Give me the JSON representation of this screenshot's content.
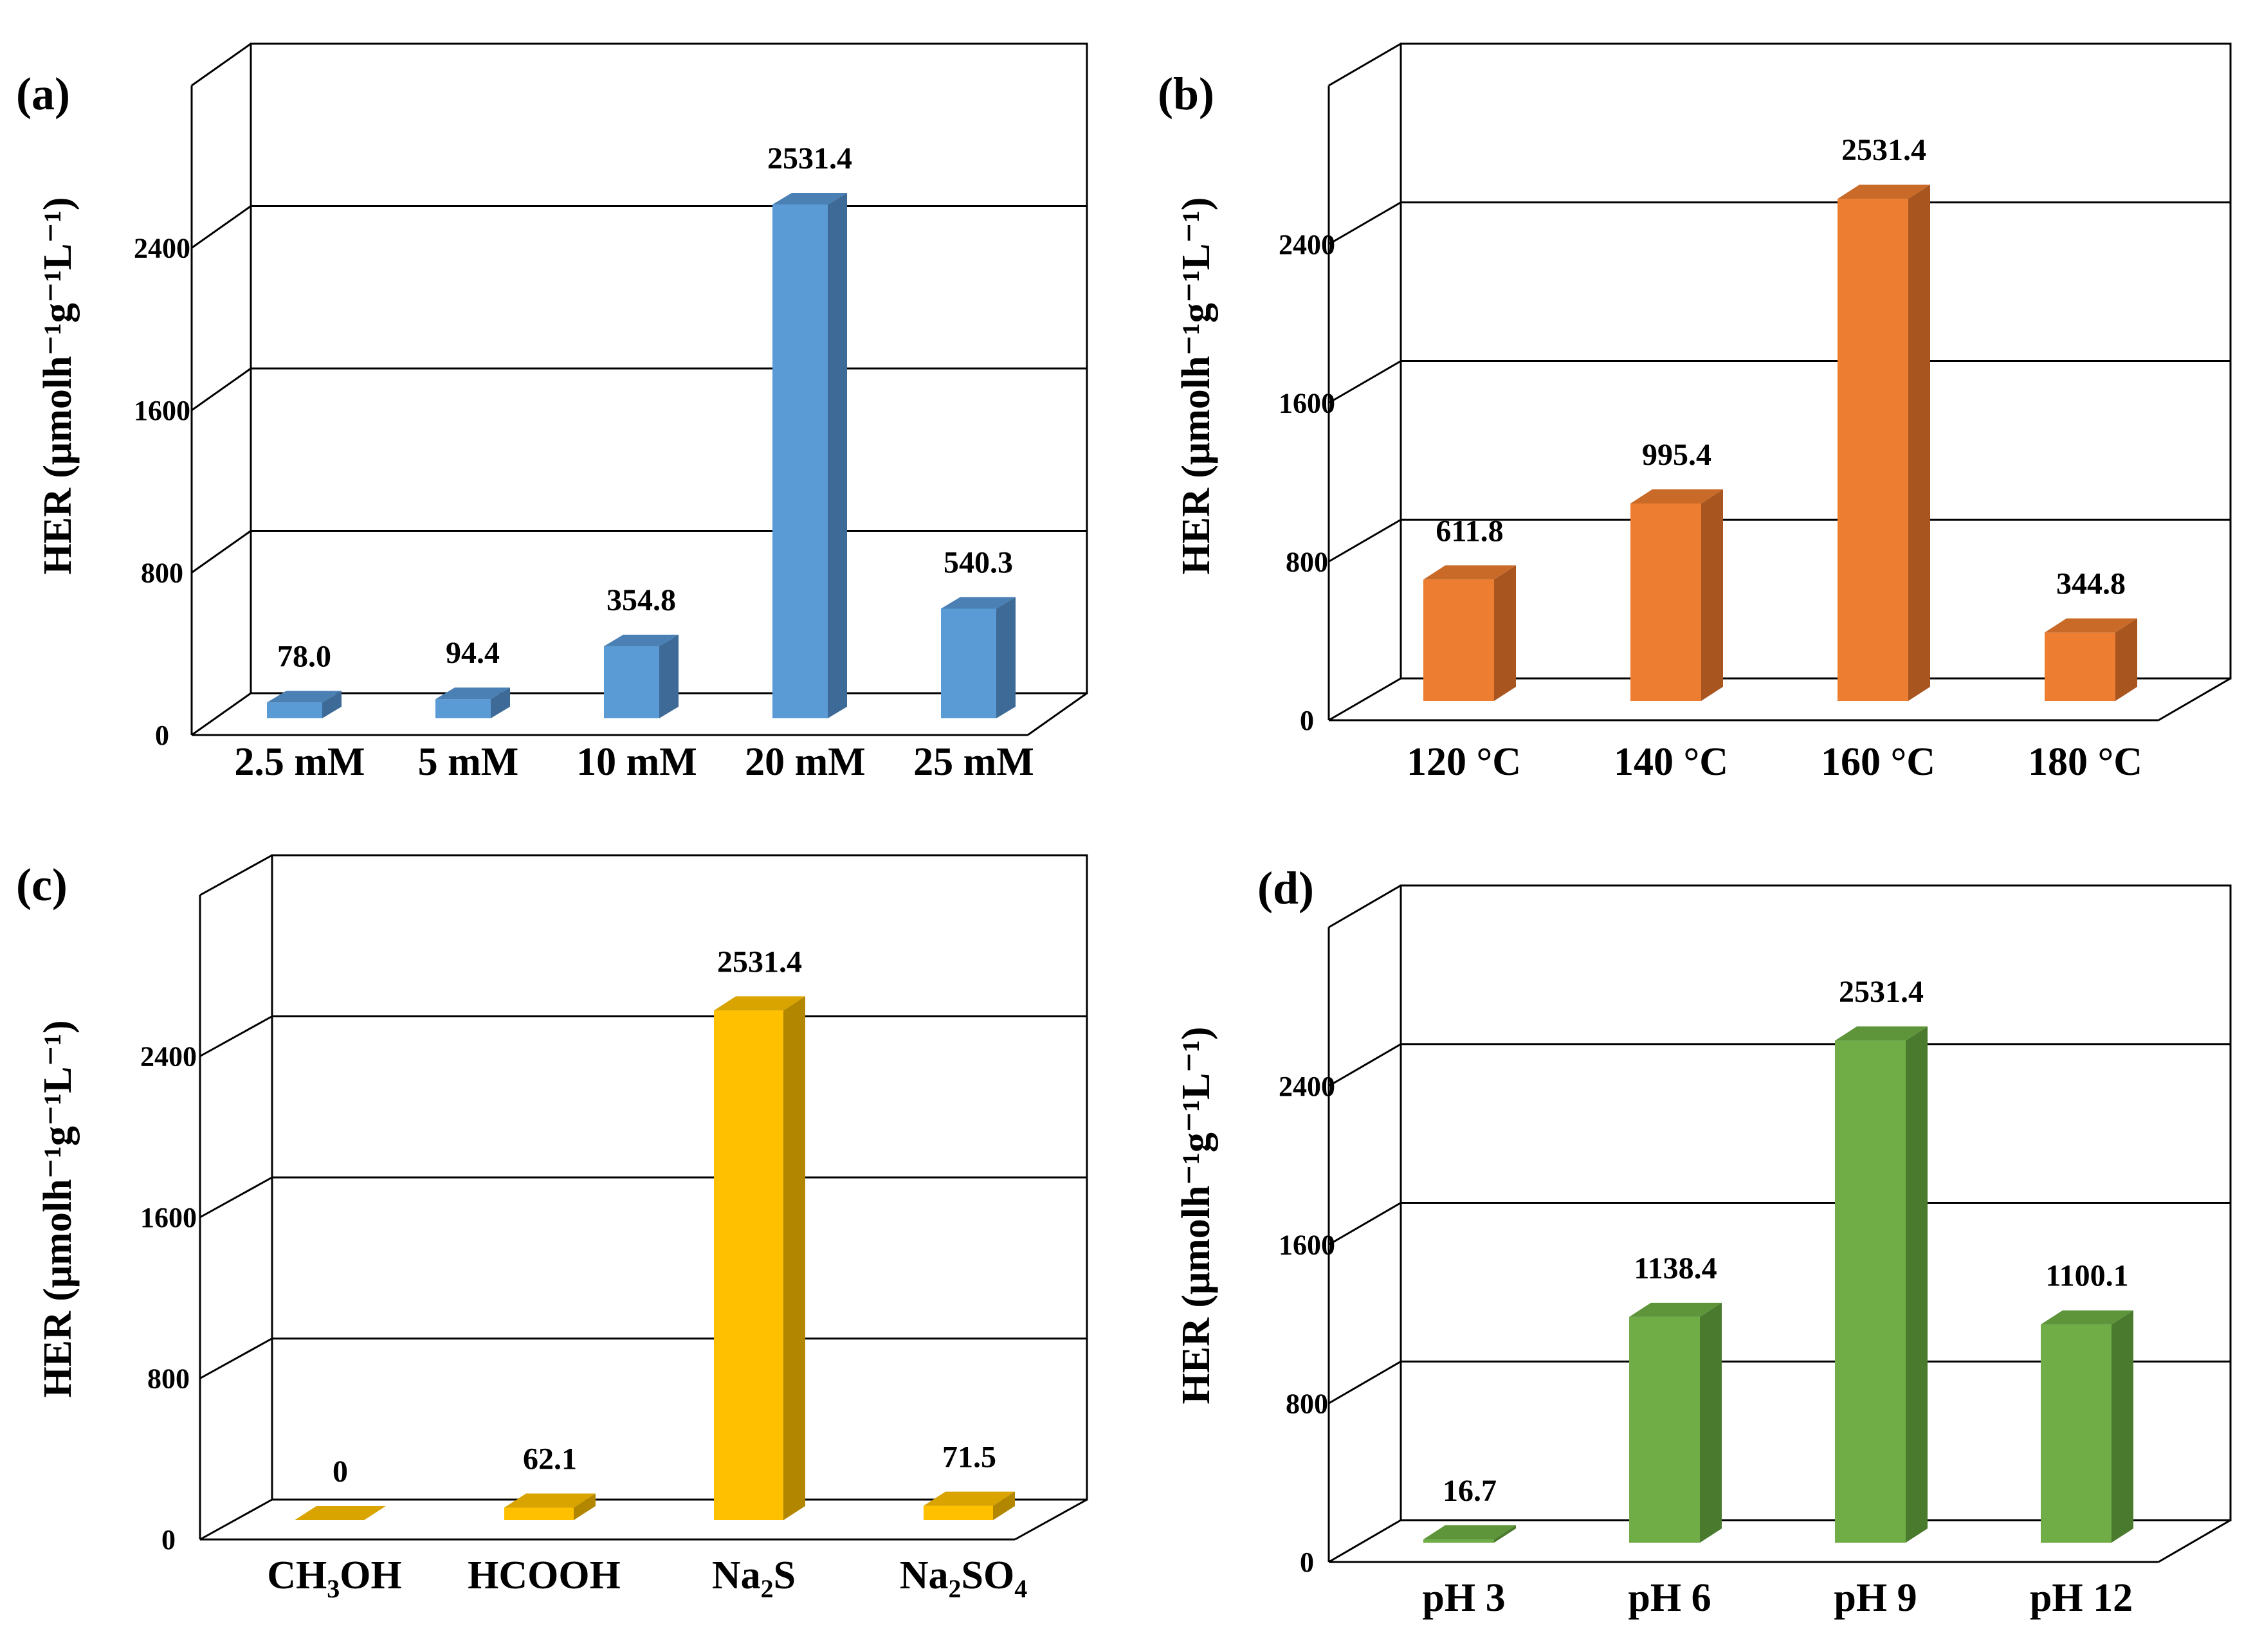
{
  "y_axis_label": "HER (μmolh⁻¹g⁻¹L⁻¹)",
  "chart_data": [
    {
      "type": "bar",
      "panel_label": "(a)",
      "categories": [
        "2.5 mM",
        "5 mM",
        "10 mM",
        "20 mM",
        "25 mM"
      ],
      "values": [
        78.0,
        94.4,
        354.8,
        2531.4,
        540.3
      ],
      "value_labels": [
        "78.0",
        "94.4",
        "354.8",
        "2531.4",
        "540.3"
      ],
      "ylabel": "HER (μmolh⁻¹g⁻¹L⁻¹)",
      "ylim": [
        0,
        3200
      ],
      "yticks": [
        "0",
        "800",
        "1600",
        "2400"
      ],
      "ytick_values": [
        0,
        800,
        1600,
        2400
      ],
      "grid": true,
      "color": {
        "front": "#5B9BD5",
        "side": "#3D6A96",
        "top": "#4A80B3"
      }
    },
    {
      "type": "bar",
      "panel_label": "(b)",
      "categories": [
        "120 °C",
        "140 °C",
        "160 °C",
        "180 °C"
      ],
      "values": [
        611.8,
        995.4,
        2531.4,
        344.8
      ],
      "value_labels": [
        "611.8",
        "995.4",
        "2531.4",
        "344.8"
      ],
      "ylabel": "HER (μmolh⁻¹g⁻¹L⁻¹)",
      "ylim": [
        0,
        3200
      ],
      "yticks": [
        "0",
        "800",
        "1600",
        "2400"
      ],
      "ytick_values": [
        0,
        800,
        1600,
        2400
      ],
      "grid": true,
      "color": {
        "front": "#ED7D31",
        "side": "#A85520",
        "top": "#C96A28"
      }
    },
    {
      "type": "bar",
      "panel_label": "(c)",
      "categories": [
        "CH3OH",
        "HCOOH",
        "Na2S",
        "Na2SO4"
      ],
      "category_labels": [
        [
          [
            "CH",
            "n"
          ],
          [
            "3",
            "sub"
          ],
          [
            "OH",
            "n"
          ]
        ],
        [
          [
            "HCOOH",
            "n"
          ]
        ],
        [
          [
            "Na",
            "n"
          ],
          [
            "2",
            "sub"
          ],
          [
            "S",
            "n"
          ]
        ],
        [
          [
            "Na",
            "n"
          ],
          [
            "2",
            "sub"
          ],
          [
            "SO",
            "n"
          ],
          [
            "4",
            "sub"
          ]
        ]
      ],
      "values": [
        0,
        62.1,
        2531.4,
        71.5
      ],
      "value_labels": [
        "0",
        "62.1",
        "2531.4",
        "71.5"
      ],
      "ylabel": "HER (μmolh⁻¹g⁻¹L⁻¹)",
      "ylim": [
        0,
        3200
      ],
      "yticks": [
        "0",
        "800",
        "1600",
        "2400"
      ],
      "ytick_values": [
        0,
        800,
        1600,
        2400
      ],
      "grid": true,
      "color": {
        "front": "#FFC000",
        "side": "#B38600",
        "top": "#D9A300"
      }
    },
    {
      "type": "bar",
      "panel_label": "(d)",
      "categories": [
        "pH 3",
        "pH 6",
        "pH 9",
        "pH 12"
      ],
      "values": [
        16.7,
        1138.4,
        2531.4,
        1100.1
      ],
      "value_labels": [
        "16.7",
        "1138.4",
        "2531.4",
        "1100.1"
      ],
      "ylabel": "HER (μmolh⁻¹g⁻¹L⁻¹)",
      "ylim": [
        0,
        3200
      ],
      "yticks": [
        "0",
        "800",
        "1600",
        "2400"
      ],
      "ytick_values": [
        0,
        800,
        1600,
        2400
      ],
      "grid": true,
      "color": {
        "front": "#70AD47",
        "side": "#4A7A2E",
        "top": "#5E943A"
      }
    }
  ]
}
